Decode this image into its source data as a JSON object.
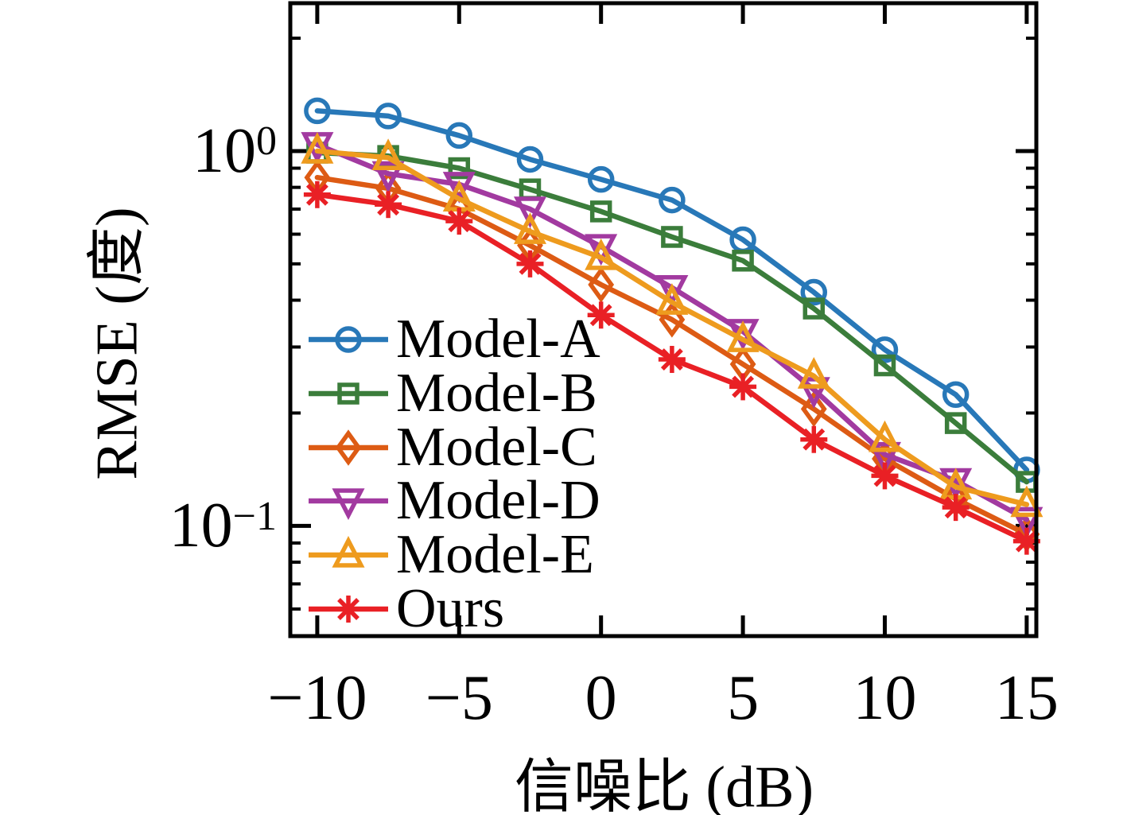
{
  "figure": {
    "background": "#ffffff"
  },
  "chart_data": {
    "type": "line",
    "title": "",
    "xlabel": "信噪比 (dB)",
    "ylabel": "RMSE (度)",
    "x_scale": "linear",
    "y_scale": "log",
    "xlim": [
      -10.95,
      15.34
    ],
    "ylim": [
      0.0508,
      2.48
    ],
    "x_ticks": [
      -10,
      -5,
      0,
      5,
      10,
      15
    ],
    "x_tick_labels": [
      "−10",
      "−5",
      "0",
      "5",
      "10",
      "15"
    ],
    "y_ticks": [
      {
        "value": 1,
        "base": "10",
        "exponent": "0"
      },
      {
        "value": 0.1,
        "base": "10",
        "exponent": "−1"
      }
    ],
    "y_minor_ticks": [
      2,
      0.9,
      0.8,
      0.7,
      0.6,
      0.5,
      0.4,
      0.3,
      0.2,
      0.09,
      0.08,
      0.07,
      0.06
    ],
    "grid": false,
    "legend": {
      "location": "inside-lower-left",
      "frame": false
    },
    "x": [
      -10,
      -7.5,
      -5,
      -2.5,
      0,
      2.5,
      5,
      7.5,
      10,
      12.5,
      15
    ],
    "series": [
      {
        "name": "Model-A",
        "marker": "circle",
        "color": "#2878B8",
        "values": [
          1.28,
          1.24,
          1.1,
          0.95,
          0.84,
          0.74,
          0.58,
          0.42,
          0.295,
          0.224,
          0.141
        ]
      },
      {
        "name": "Model-B",
        "marker": "square",
        "color": "#3B7D3B",
        "values": [
          0.99,
          0.97,
          0.9,
          0.79,
          0.69,
          0.59,
          0.51,
          0.38,
          0.268,
          0.188,
          0.131
        ]
      },
      {
        "name": "Model-C",
        "marker": "diamond",
        "color": "#DD5B14",
        "values": [
          0.85,
          0.795,
          0.7,
          0.56,
          0.44,
          0.355,
          0.27,
          0.205,
          0.151,
          0.118,
          0.095
        ]
      },
      {
        "name": "Model-D",
        "marker": "triangle-down",
        "color": "#A23AA0",
        "values": [
          1.04,
          0.87,
          0.815,
          0.7,
          0.556,
          0.432,
          0.33,
          0.231,
          0.155,
          0.132,
          0.104
        ]
      },
      {
        "name": "Model-E",
        "marker": "triangle-up",
        "color": "#EE9B1E",
        "values": [
          1.0,
          0.96,
          0.745,
          0.61,
          0.52,
          0.395,
          0.314,
          0.251,
          0.17,
          0.127,
          0.114
        ]
      },
      {
        "name": "Ours",
        "marker": "asterisk",
        "color": "#E92025",
        "values": [
          0.765,
          0.72,
          0.65,
          0.5,
          0.365,
          0.278,
          0.235,
          0.17,
          0.136,
          0.112,
          0.091
        ]
      }
    ]
  }
}
